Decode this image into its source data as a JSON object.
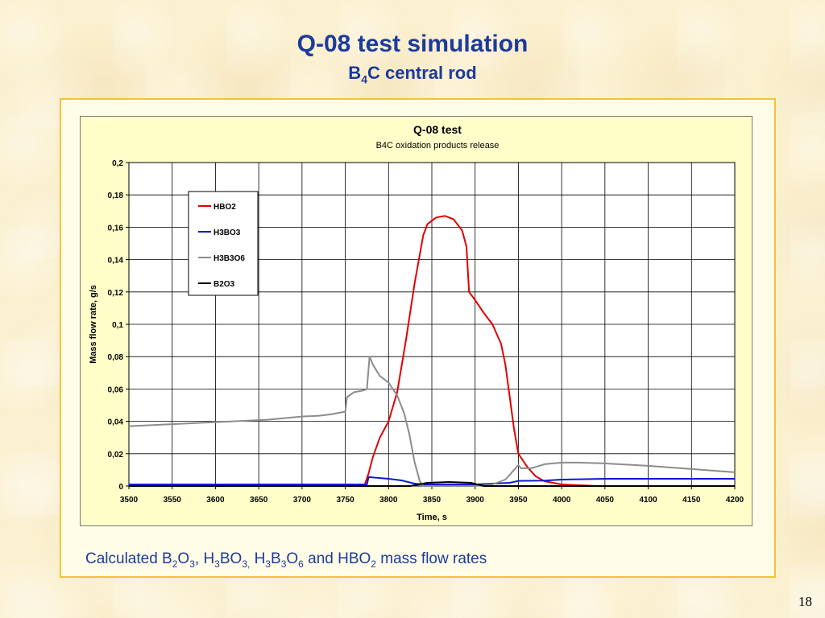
{
  "slide": {
    "title": "Q-08 test simulation",
    "subtitle_main": "B",
    "subtitle_sub": "4",
    "subtitle_rest": "C central rod",
    "caption": {
      "t1": "Calculated B",
      "s1": "2",
      "t2": "O",
      "s2": "3",
      "t3": ", H",
      "s3": "3",
      "t4": "BO",
      "s4": "3,",
      "t5": " H",
      "s5": "3",
      "t6": "B",
      "s6": "3",
      "t7": "O",
      "s7": "6",
      "t8": " and HBO",
      "s8": "2",
      "t9": "  mass flow rates"
    },
    "page_number": "18"
  },
  "chart_data": {
    "type": "line",
    "title": "Q-08 test",
    "subtitle": "B4C oxidation products release",
    "xlabel": "Time, s",
    "ylabel": "Mass flow rate, g/s",
    "xlim": [
      3500,
      4200
    ],
    "ylim": [
      0,
      0.2
    ],
    "x_ticks": [
      3500,
      3550,
      3600,
      3650,
      3700,
      3750,
      3800,
      3850,
      3900,
      3950,
      4000,
      4050,
      4100,
      4150,
      4200
    ],
    "x_tick_labels": [
      "3500",
      "3550",
      "3600",
      "3650",
      "3700",
      "3750",
      "3800",
      "3850",
      "3900",
      "3950",
      "4000",
      "4050",
      "4100",
      "4150",
      "4200"
    ],
    "y_ticks": [
      0,
      0.02,
      0.04,
      0.06,
      0.08,
      0.1,
      0.12,
      0.14,
      0.16,
      0.18,
      0.2
    ],
    "y_tick_labels": [
      "0",
      "0,02",
      "0,04",
      "0,06",
      "0,08",
      "0,1",
      "0,12",
      "0,14",
      "0,16",
      "0,18",
      "0,2"
    ],
    "grid": true,
    "legend_position": "top-left",
    "series": [
      {
        "name": "HBO2",
        "color": "#e00000",
        "points": [
          [
            3500,
            0
          ],
          [
            3772,
            0
          ],
          [
            3777,
            0.008
          ],
          [
            3782,
            0.018
          ],
          [
            3790,
            0.03
          ],
          [
            3800,
            0.04
          ],
          [
            3810,
            0.058
          ],
          [
            3820,
            0.09
          ],
          [
            3830,
            0.125
          ],
          [
            3840,
            0.155
          ],
          [
            3845,
            0.162
          ],
          [
            3855,
            0.166
          ],
          [
            3865,
            0.167
          ],
          [
            3875,
            0.165
          ],
          [
            3885,
            0.158
          ],
          [
            3890,
            0.148
          ],
          [
            3893,
            0.12
          ],
          [
            3900,
            0.115
          ],
          [
            3910,
            0.107
          ],
          [
            3920,
            0.1
          ],
          [
            3930,
            0.088
          ],
          [
            3935,
            0.075
          ],
          [
            3940,
            0.055
          ],
          [
            3945,
            0.035
          ],
          [
            3950,
            0.02
          ],
          [
            3960,
            0.012
          ],
          [
            3970,
            0.006
          ],
          [
            3980,
            0.003
          ],
          [
            4000,
            0.001
          ],
          [
            4040,
            0
          ],
          [
            4200,
            0
          ]
        ]
      },
      {
        "name": "H3BO3",
        "color": "#0a1ad0",
        "points": [
          [
            3500,
            0.001
          ],
          [
            3775,
            0.001
          ],
          [
            3777,
            0.0055
          ],
          [
            3800,
            0.0045
          ],
          [
            3815,
            0.0035
          ],
          [
            3830,
            0.0015
          ],
          [
            3840,
            0.001
          ],
          [
            3900,
            0.001
          ],
          [
            3940,
            0.002
          ],
          [
            3950,
            0.0032
          ],
          [
            3980,
            0.0034
          ],
          [
            4000,
            0.004
          ],
          [
            4050,
            0.0045
          ],
          [
            4200,
            0.0045
          ]
        ]
      },
      {
        "name": "H3B3O6",
        "color": "#8c8c8c",
        "points": [
          [
            3500,
            0.037
          ],
          [
            3520,
            0.0375
          ],
          [
            3540,
            0.038
          ],
          [
            3560,
            0.0385
          ],
          [
            3580,
            0.039
          ],
          [
            3600,
            0.0395
          ],
          [
            3620,
            0.04
          ],
          [
            3640,
            0.0405
          ],
          [
            3660,
            0.041
          ],
          [
            3680,
            0.042
          ],
          [
            3700,
            0.043
          ],
          [
            3720,
            0.0435
          ],
          [
            3735,
            0.0445
          ],
          [
            3750,
            0.046
          ],
          [
            3752,
            0.055
          ],
          [
            3760,
            0.058
          ],
          [
            3770,
            0.059
          ],
          [
            3775,
            0.06
          ],
          [
            3778,
            0.08
          ],
          [
            3782,
            0.075
          ],
          [
            3790,
            0.068
          ],
          [
            3800,
            0.064
          ],
          [
            3810,
            0.056
          ],
          [
            3818,
            0.045
          ],
          [
            3824,
            0.032
          ],
          [
            3830,
            0.015
          ],
          [
            3836,
            0.003
          ],
          [
            3840,
            0
          ],
          [
            3900,
            0
          ],
          [
            3920,
            0.001
          ],
          [
            3935,
            0.004
          ],
          [
            3945,
            0.01
          ],
          [
            3950,
            0.013
          ],
          [
            3953,
            0.011
          ],
          [
            3965,
            0.011
          ],
          [
            3980,
            0.0135
          ],
          [
            4000,
            0.0145
          ],
          [
            4020,
            0.0145
          ],
          [
            4050,
            0.014
          ],
          [
            4100,
            0.0125
          ],
          [
            4150,
            0.0105
          ],
          [
            4200,
            0.0085
          ]
        ]
      },
      {
        "name": "B2O3",
        "color": "#000000",
        "points": [
          [
            3500,
            0
          ],
          [
            3825,
            0
          ],
          [
            3845,
            0.002
          ],
          [
            3870,
            0.0025
          ],
          [
            3895,
            0.002
          ],
          [
            3910,
            0
          ],
          [
            4200,
            0
          ]
        ]
      }
    ]
  }
}
